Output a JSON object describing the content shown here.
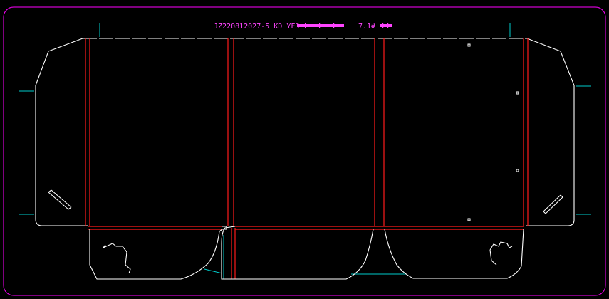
{
  "drawing": {
    "title": "JZ220812027-5 KD YFD-",
    "title_tail": "7.1#",
    "colors": {
      "background": "#000000",
      "frame": "#ff00ff",
      "cut_line": "#ffffff",
      "fold_line": "#ff1a1a",
      "guide_line": "#00cccc",
      "title": "#ff44ff"
    }
  }
}
